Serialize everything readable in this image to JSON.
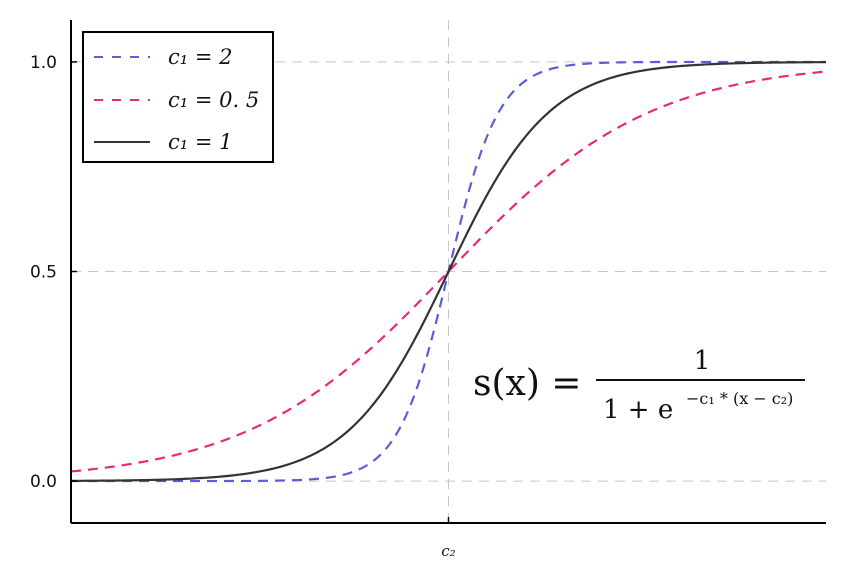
{
  "chart_data": {
    "type": "line",
    "title": "",
    "xlabel": "",
    "ylabel": "",
    "xlim": [
      -7.5,
      7.5
    ],
    "ylim": [
      -0.1,
      1.1
    ],
    "x_ticks": [
      {
        "value": 0,
        "label": "c₂"
      }
    ],
    "y_ticks": [
      {
        "value": 0.0,
        "label": "0.0"
      },
      {
        "value": 0.5,
        "label": "0.5"
      },
      {
        "value": 1.0,
        "label": "1.0"
      }
    ],
    "grid": true,
    "legend_position": "top-left",
    "series": [
      {
        "name": "c₁ = 2",
        "c1": 2,
        "color": "#5a5fd6",
        "style": "dashed"
      },
      {
        "name": "c₁ = 0. 5",
        "c1": 0.5,
        "color": "#e8297c",
        "style": "dashed"
      },
      {
        "name": "c₁ = 1",
        "c1": 1,
        "color": "#333333",
        "style": "solid"
      }
    ],
    "annotation": {
      "lhs": "s(x) =",
      "numerator": "1",
      "denominator": "1 + e",
      "exponent": "−c₁ * (x − c₂)"
    }
  }
}
